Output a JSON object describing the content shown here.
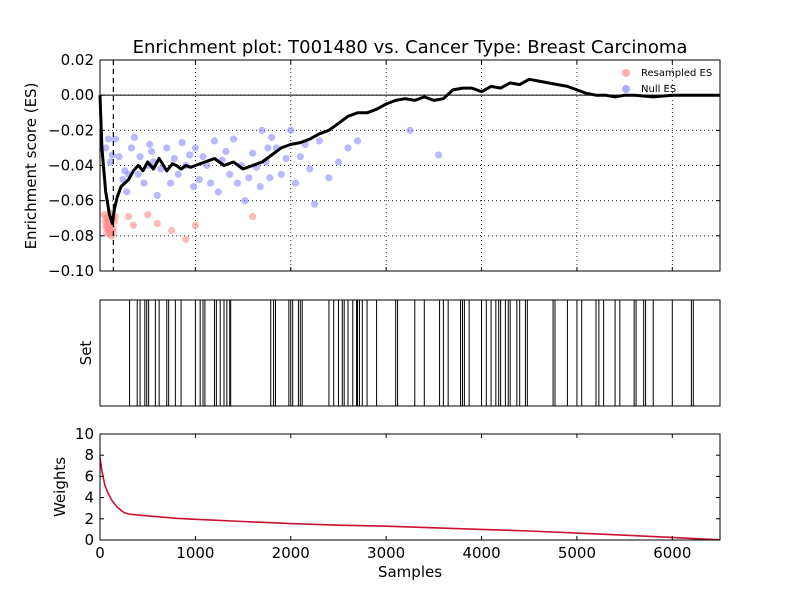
{
  "chart_data": [
    {
      "type": "line",
      "title": "Enrichment plot: T001480 vs. Cancer Type: Breast Carcinoma",
      "xlabel": "",
      "ylabel": "Enrichment score (ES)",
      "xlim": [
        0,
        6500
      ],
      "ylim": [
        -0.1,
        0.02
      ],
      "yticks": [
        0.02,
        0.0,
        -0.02,
        -0.04,
        -0.06,
        -0.08,
        -0.1
      ],
      "ytick_labels": [
        "0.02",
        "0.00",
        "−0.02",
        "−0.04",
        "−0.06",
        "−0.08",
        "−0.10"
      ],
      "xticks": [
        0,
        1000,
        2000,
        3000,
        4000,
        5000,
        6000
      ],
      "grid": true,
      "legend_position": "top-right",
      "hline": 0.0,
      "vline_x": 140,
      "series": [
        {
          "name": "",
          "color": "#000000",
          "x": [
            0,
            20,
            60,
            100,
            130,
            150,
            180,
            220,
            260,
            300,
            350,
            400,
            450,
            500,
            560,
            620,
            700,
            760,
            800,
            850,
            900,
            950,
            1000,
            1100,
            1200,
            1300,
            1400,
            1500,
            1600,
            1700,
            1800,
            1900,
            2000,
            2100,
            2200,
            2300,
            2400,
            2500,
            2600,
            2700,
            2800,
            2900,
            3000,
            3100,
            3200,
            3300,
            3400,
            3500,
            3600,
            3700,
            3800,
            3900,
            4000,
            4100,
            4200,
            4300,
            4400,
            4500,
            4600,
            4700,
            4800,
            4900,
            5000,
            5100,
            5200,
            5300,
            5400,
            5500,
            5600,
            5800,
            6000,
            6200,
            6500
          ],
          "values": [
            0.0,
            -0.03,
            -0.055,
            -0.068,
            -0.073,
            -0.065,
            -0.058,
            -0.052,
            -0.05,
            -0.048,
            -0.043,
            -0.04,
            -0.043,
            -0.038,
            -0.042,
            -0.036,
            -0.043,
            -0.039,
            -0.04,
            -0.042,
            -0.04,
            -0.041,
            -0.04,
            -0.038,
            -0.036,
            -0.04,
            -0.038,
            -0.042,
            -0.04,
            -0.038,
            -0.034,
            -0.03,
            -0.028,
            -0.027,
            -0.025,
            -0.022,
            -0.02,
            -0.016,
            -0.012,
            -0.01,
            -0.01,
            -0.008,
            -0.005,
            -0.003,
            -0.002,
            -0.003,
            -0.001,
            -0.003,
            -0.002,
            0.003,
            0.004,
            0.004,
            0.002,
            0.005,
            0.004,
            0.007,
            0.006,
            0.009,
            0.008,
            0.007,
            0.006,
            0.005,
            0.003,
            0.001,
            0.0,
            0.0,
            -0.001,
            0.0,
            0.0,
            -0.001,
            0.0,
            0.0,
            0.0
          ]
        },
        {
          "name": "Resampled ES",
          "type": "scatter",
          "color": "#ff8a8a",
          "x": [
            45,
            55,
            60,
            65,
            70,
            75,
            80,
            85,
            90,
            95,
            100,
            105,
            110,
            115,
            120,
            125,
            130,
            135,
            140,
            150,
            160,
            300,
            350,
            500,
            600,
            750,
            900,
            1000,
            1600
          ],
          "values": [
            -0.068,
            -0.072,
            -0.075,
            -0.07,
            -0.078,
            -0.074,
            -0.071,
            -0.076,
            -0.069,
            -0.079,
            -0.073,
            -0.067,
            -0.077,
            -0.072,
            -0.08,
            -0.074,
            -0.07,
            -0.076,
            -0.078,
            -0.072,
            -0.069,
            -0.069,
            -0.074,
            -0.068,
            -0.073,
            -0.077,
            -0.082,
            -0.074,
            -0.069
          ]
        },
        {
          "name": "Null ES",
          "type": "scatter",
          "color": "#8a8aff",
          "x": [
            60,
            90,
            110,
            130,
            160,
            200,
            240,
            260,
            280,
            300,
            330,
            360,
            400,
            420,
            460,
            500,
            520,
            540,
            560,
            600,
            640,
            700,
            740,
            780,
            820,
            860,
            900,
            940,
            980,
            1000,
            1040,
            1080,
            1120,
            1160,
            1200,
            1240,
            1280,
            1320,
            1360,
            1400,
            1440,
            1480,
            1520,
            1560,
            1600,
            1640,
            1680,
            1700,
            1740,
            1760,
            1780,
            1800,
            1850,
            1900,
            1950,
            2000,
            2050,
            2100,
            2150,
            2200,
            2250,
            2300,
            2400,
            2500,
            2600,
            2700,
            3250,
            3550
          ],
          "values": [
            -0.03,
            -0.025,
            -0.038,
            -0.034,
            -0.025,
            -0.035,
            -0.048,
            -0.043,
            -0.055,
            -0.045,
            -0.03,
            -0.024,
            -0.045,
            -0.035,
            -0.05,
            -0.04,
            -0.028,
            -0.032,
            -0.038,
            -0.057,
            -0.042,
            -0.03,
            -0.05,
            -0.036,
            -0.045,
            -0.027,
            -0.04,
            -0.034,
            -0.052,
            -0.03,
            -0.048,
            -0.035,
            -0.04,
            -0.05,
            -0.026,
            -0.055,
            -0.037,
            -0.032,
            -0.045,
            -0.025,
            -0.05,
            -0.04,
            -0.06,
            -0.047,
            -0.033,
            -0.041,
            -0.052,
            -0.02,
            -0.038,
            -0.03,
            -0.047,
            -0.024,
            -0.03,
            -0.045,
            -0.036,
            -0.02,
            -0.05,
            -0.035,
            -0.028,
            -0.042,
            -0.062,
            -0.026,
            -0.047,
            -0.038,
            -0.03,
            -0.026,
            -0.02,
            -0.034
          ]
        }
      ]
    },
    {
      "type": "bar",
      "title": "",
      "xlabel": "",
      "ylabel": "Set",
      "xlim": [
        0,
        6500
      ],
      "x": [
        310,
        390,
        420,
        470,
        490,
        510,
        580,
        620,
        700,
        720,
        790,
        850,
        1000,
        1050,
        1080,
        1100,
        1200,
        1220,
        1260,
        1300,
        1330,
        1360,
        1370,
        1790,
        1820,
        1840,
        1980,
        2000,
        2020,
        2080,
        2100,
        2120,
        2400,
        2450,
        2500,
        2540,
        2560,
        2600,
        2650,
        2690,
        2700,
        2720,
        2750,
        2800,
        2900,
        3100,
        3120,
        3300,
        3400,
        3560,
        3600,
        3650,
        3780,
        3800,
        3820,
        3870,
        4000,
        4050,
        4100,
        4150,
        4180,
        4200,
        4250,
        4280,
        4300,
        4370,
        4400,
        4460,
        4480,
        4750,
        4770,
        4900,
        5000,
        5050,
        5200,
        5230,
        5280,
        5400,
        5450,
        5600,
        5620,
        5700,
        5720,
        5800,
        6000,
        6200,
        6220
      ]
    },
    {
      "type": "line",
      "title": "",
      "xlabel": "Samples",
      "ylabel": "Weights",
      "xlim": [
        0,
        6500
      ],
      "ylim": [
        0,
        10
      ],
      "yticks": [
        0,
        2,
        4,
        6,
        8,
        10
      ],
      "xticks": [
        0,
        1000,
        2000,
        3000,
        4000,
        5000,
        6000
      ],
      "grid": false,
      "series": [
        {
          "name": "",
          "color": "#cc1133",
          "x": [
            0,
            20,
            50,
            80,
            120,
            180,
            250,
            300,
            400,
            600,
            800,
            1000,
            1500,
            2000,
            2500,
            3000,
            3500,
            4000,
            4500,
            5000,
            5500,
            6000,
            6300,
            6500
          ],
          "values": [
            7.8,
            6.5,
            5.2,
            4.5,
            3.8,
            3.1,
            2.6,
            2.45,
            2.35,
            2.2,
            2.05,
            1.95,
            1.75,
            1.55,
            1.4,
            1.3,
            1.15,
            1.0,
            0.85,
            0.65,
            0.45,
            0.25,
            0.1,
            0.02
          ]
        }
      ]
    }
  ]
}
